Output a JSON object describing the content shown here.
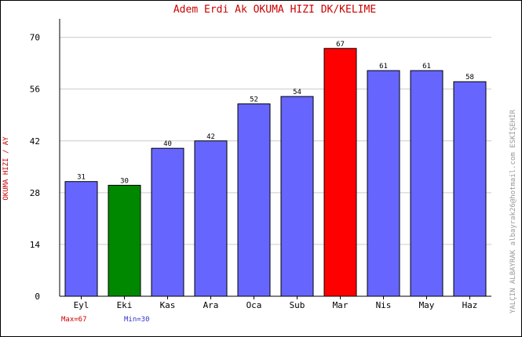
{
  "chart_data": {
    "type": "bar",
    "title": "Adem Erdi Ak   OKUMA HIZI  DK/KELIME",
    "ylabel": "OKUMA HIZI / AY",
    "side_note": "YALÇIN ALBAYRAK   albayrak26@hotmail.com   ESKİŞEHİR",
    "categories": [
      "Eyl",
      "Eki",
      "Kas",
      "Ara",
      "Oca",
      "Sub",
      "Mar",
      "Nis",
      "May",
      "Haz"
    ],
    "values": [
      31,
      30,
      40,
      42,
      52,
      54,
      67,
      61,
      61,
      58
    ],
    "bar_colors": [
      "#6666ff",
      "#008800",
      "#6666ff",
      "#6666ff",
      "#6666ff",
      "#6666ff",
      "#ff0000",
      "#6666ff",
      "#6666ff",
      "#6666ff"
    ],
    "ylim": [
      0,
      75
    ],
    "yticks": [
      0,
      14,
      28,
      42,
      56,
      70
    ],
    "grid": true,
    "max_label": "Max=67",
    "min_label": "Min=30",
    "colors": {
      "title": "#cc0000",
      "ylabel": "#cc0000",
      "max": "#cc0000",
      "min": "#3333cc",
      "side_note": "#999999",
      "grid": "#cccccc"
    }
  }
}
